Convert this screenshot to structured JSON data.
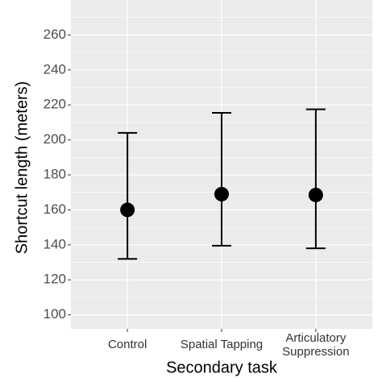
{
  "chart_data": {
    "type": "errorpoint",
    "x_label": "Secondary task",
    "y_label": "Shortcut length (meters)",
    "categories": [
      "Control",
      "Spatial Tapping",
      "Articulatory Suppression"
    ],
    "values": [
      160,
      169,
      168.5
    ],
    "lower": [
      132,
      139.5,
      138
    ],
    "upper": [
      204,
      215.5,
      217.5
    ],
    "color": "#000000",
    "ylim": [
      92,
      280
    ],
    "yticks": [
      100,
      120,
      140,
      160,
      180,
      200,
      220,
      240,
      260
    ],
    "minor_yticks": [
      110,
      130,
      150,
      170,
      190,
      210,
      230,
      250,
      270
    ],
    "grid": true
  }
}
